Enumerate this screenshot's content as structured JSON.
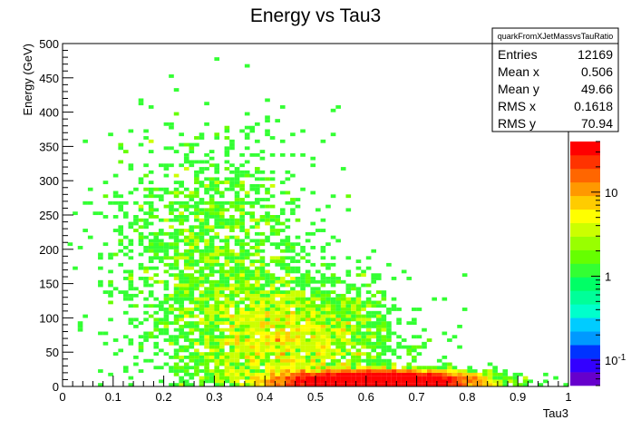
{
  "chart_data": {
    "type": "heatmap",
    "title": "Energy vs Tau3",
    "xlabel": "Tau3",
    "ylabel": "Energy (GeV)",
    "xlim": [
      0,
      1
    ],
    "ylim": [
      0,
      500
    ],
    "x_ticks": [
      "0",
      "0.1",
      "0.2",
      "0.3",
      "0.4",
      "0.5",
      "0.6",
      "0.7",
      "0.8",
      "0.9",
      "1"
    ],
    "y_ticks": [
      "0",
      "50",
      "100",
      "150",
      "200",
      "250",
      "300",
      "350",
      "400",
      "450",
      "500"
    ],
    "z_scale": "log",
    "zlim": [
      0.05,
      40
    ],
    "z_ticks": [
      {
        "value": 0.1,
        "label": "10",
        "exp": "-1"
      },
      {
        "value": 1,
        "label": "1",
        "exp": ""
      },
      {
        "value": 10,
        "label": "10",
        "exp": ""
      }
    ],
    "palette": [
      "#6600cc",
      "#3300ff",
      "#0033ff",
      "#0099ff",
      "#00ccff",
      "#00ffcc",
      "#00ff99",
      "#00ff66",
      "#33ff33",
      "#66ff00",
      "#99ff00",
      "#ccff00",
      "#ffff00",
      "#ffcc00",
      "#ff9900",
      "#ff6600",
      "#ff3300",
      "#ff0000"
    ],
    "stats": {
      "name": "quarkFromXJetMassvsTauRatio",
      "rows": [
        {
          "label": "Entries",
          "value": "12169"
        },
        {
          "label": "Mean x",
          "value": "0.506"
        },
        {
          "label": "Mean y",
          "value": "49.66"
        },
        {
          "label": "RMS x",
          "value": "0.1618"
        },
        {
          "label": "RMS y",
          "value": "70.94"
        }
      ]
    },
    "distribution": {
      "components": [
        {
          "weight": 0.62,
          "x_mean": 0.62,
          "x_sigma": 0.095,
          "y_mean": 9,
          "y_sigma": 7
        },
        {
          "weight": 0.25,
          "x_mean": 0.44,
          "x_sigma": 0.11,
          "y_mean": 70,
          "y_sigma": 45
        },
        {
          "weight": 0.13,
          "x_mean": 0.3,
          "x_sigma": 0.1,
          "y_mean": 200,
          "y_sigma": 85
        }
      ]
    }
  }
}
